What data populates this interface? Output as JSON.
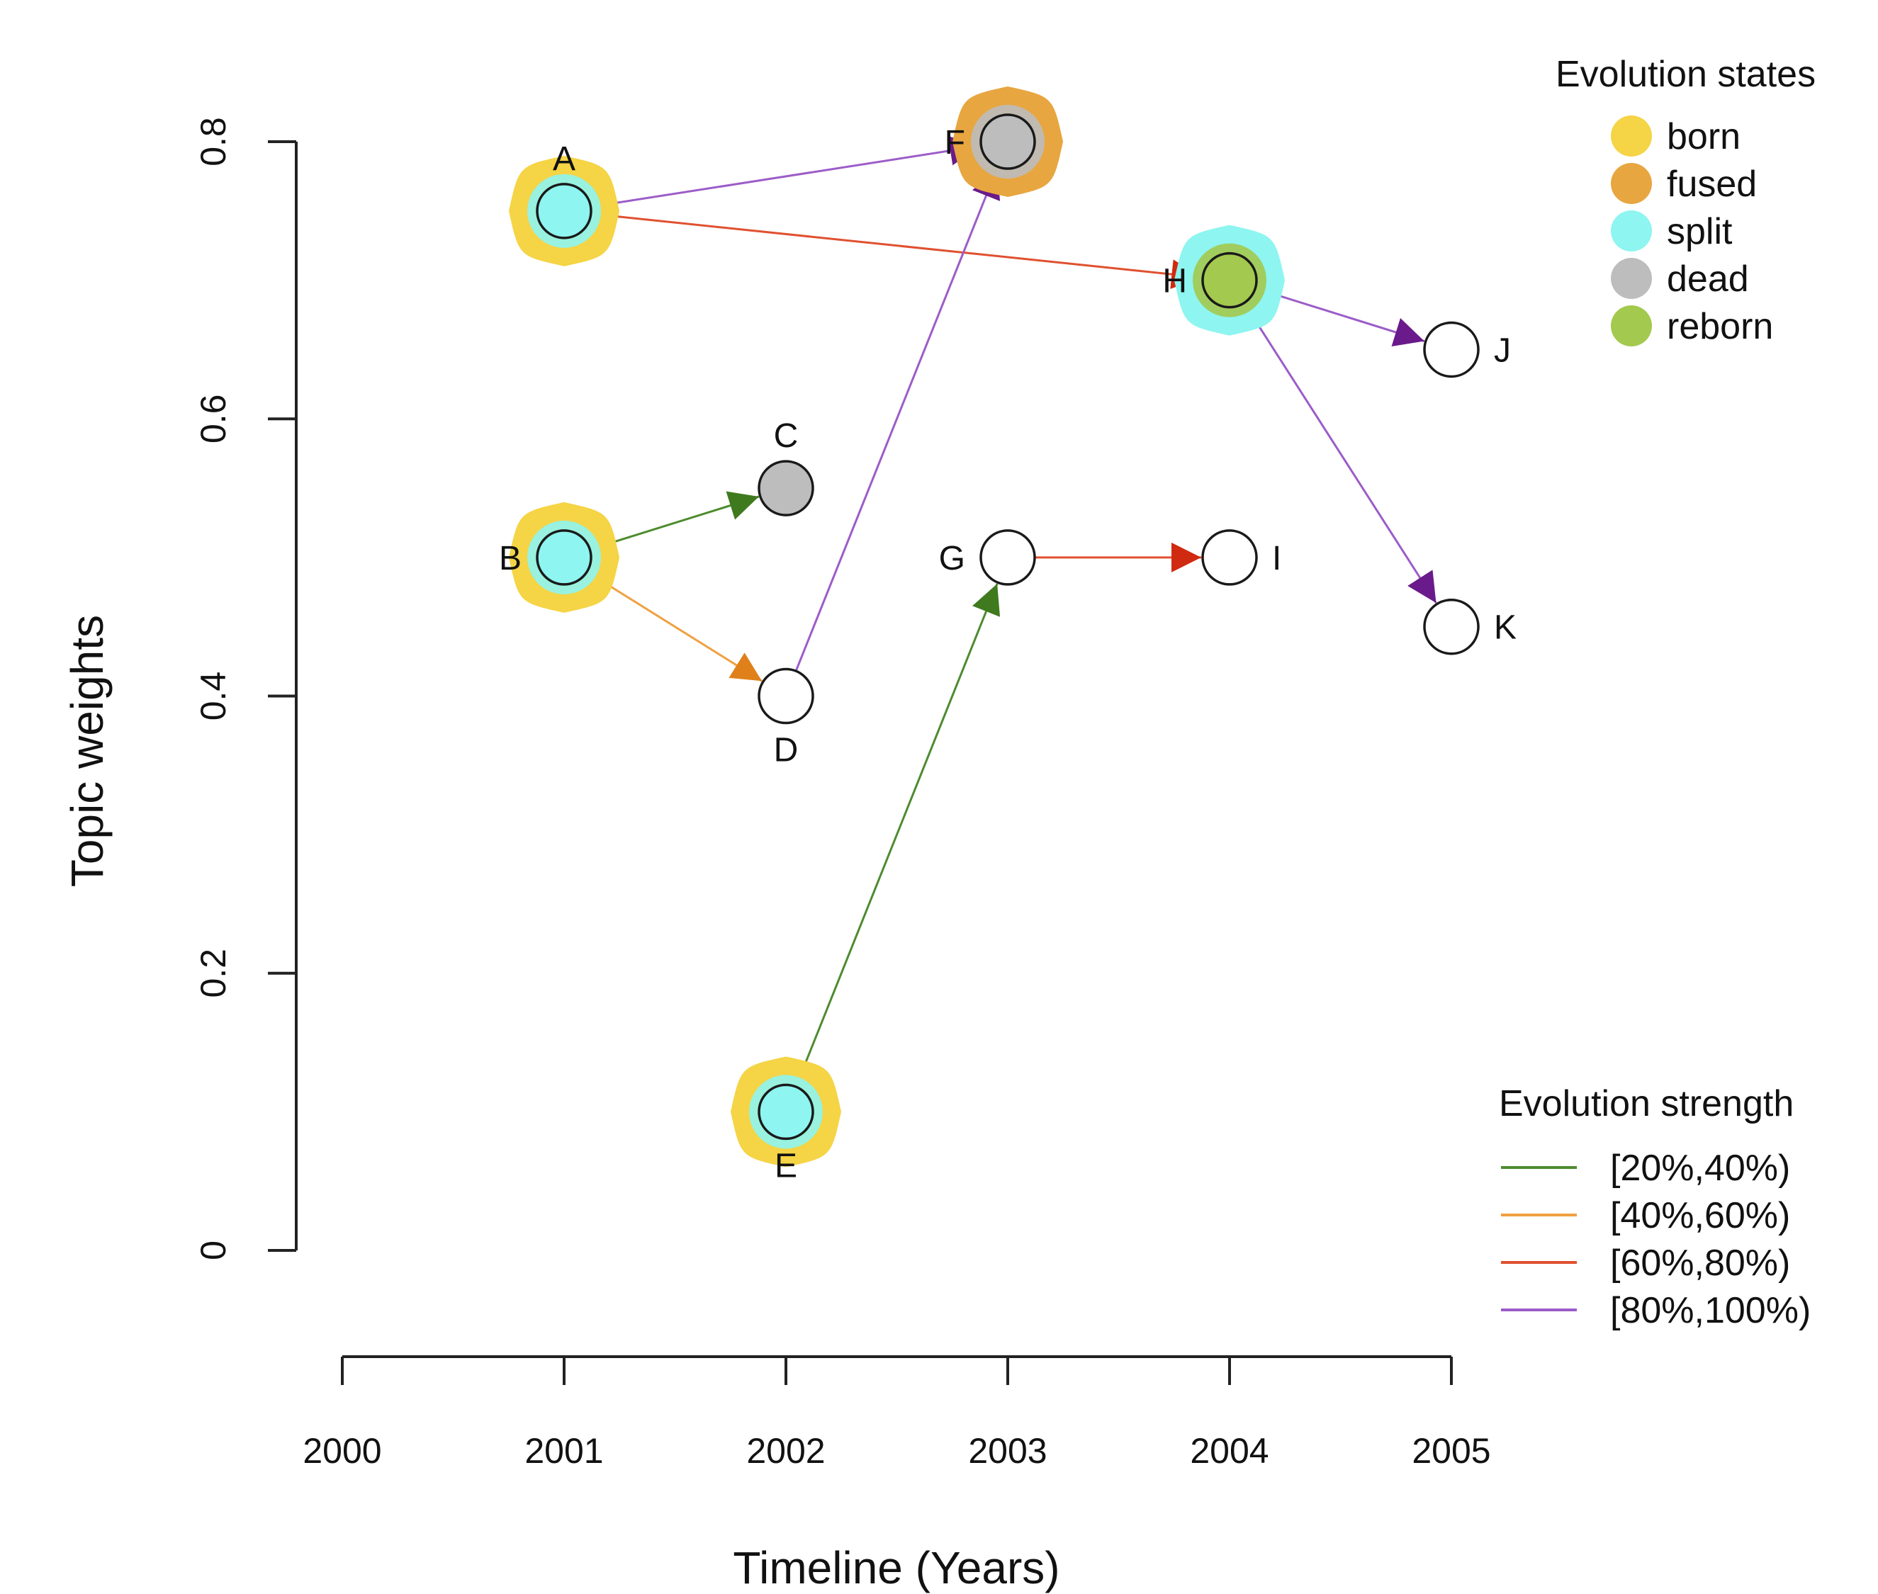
{
  "chart_data": {
    "type": "scatter",
    "xlabel": "Timeline (Years)",
    "ylabel": "Topic weights",
    "x_ticks": [
      "2000",
      "2001",
      "2002",
      "2003",
      "2004",
      "2005"
    ],
    "y_ticks": [
      "0",
      "0.2",
      "0.4",
      "0.6",
      "0.8"
    ],
    "xlim": [
      2000,
      2005
    ],
    "ylim": [
      0,
      0.8
    ],
    "grid": false,
    "nodes": [
      {
        "id": "A",
        "year": 2001,
        "weight": 0.75,
        "fill": "split",
        "halo": "born",
        "label_pos": "top"
      },
      {
        "id": "B",
        "year": 2001,
        "weight": 0.5,
        "fill": "split",
        "halo": "born",
        "label_pos": "left"
      },
      {
        "id": "C",
        "year": 2002,
        "weight": 0.55,
        "fill": "dead",
        "halo": null,
        "label_pos": "top"
      },
      {
        "id": "D",
        "year": 2002,
        "weight": 0.4,
        "fill": null,
        "halo": null,
        "label_pos": "bottom"
      },
      {
        "id": "E",
        "year": 2002,
        "weight": 0.1,
        "fill": "split",
        "halo": "born",
        "label_pos": "bottom"
      },
      {
        "id": "F",
        "year": 2003,
        "weight": 0.8,
        "fill": "dead",
        "halo": "fused",
        "label_pos": "left"
      },
      {
        "id": "G",
        "year": 2003,
        "weight": 0.5,
        "fill": null,
        "halo": null,
        "label_pos": "left"
      },
      {
        "id": "H",
        "year": 2004,
        "weight": 0.7,
        "fill": "reborn",
        "halo": "split",
        "label_pos": "left"
      },
      {
        "id": "I",
        "year": 2004,
        "weight": 0.5,
        "fill": null,
        "halo": null,
        "label_pos": "right"
      },
      {
        "id": "J",
        "year": 2005,
        "weight": 0.65,
        "fill": null,
        "halo": null,
        "label_pos": "right"
      },
      {
        "id": "K",
        "year": 2005,
        "weight": 0.45,
        "fill": null,
        "halo": null,
        "label_pos": "right"
      }
    ],
    "edges": [
      {
        "from": "A",
        "to": "F",
        "strength": "[80%,100%)"
      },
      {
        "from": "A",
        "to": "H",
        "strength": "[60%,80%)"
      },
      {
        "from": "B",
        "to": "C",
        "strength": "[20%,40%)"
      },
      {
        "from": "B",
        "to": "D",
        "strength": "[40%,60%)"
      },
      {
        "from": "D",
        "to": "F",
        "strength": "[80%,100%)"
      },
      {
        "from": "E",
        "to": "G",
        "strength": "[20%,40%)"
      },
      {
        "from": "G",
        "to": "I",
        "strength": "[60%,80%)"
      },
      {
        "from": "H",
        "to": "J",
        "strength": "[80%,100%)"
      },
      {
        "from": "H",
        "to": "K",
        "strength": "[80%,100%)"
      }
    ],
    "legend_states": {
      "title": "Evolution states",
      "placement": "top-right",
      "items": [
        {
          "key": "born",
          "label": "born",
          "color": "#F5D445"
        },
        {
          "key": "fused",
          "label": "fused",
          "color": "#E8A640"
        },
        {
          "key": "split",
          "label": "split",
          "color": "#8EF5F0"
        },
        {
          "key": "dead",
          "label": "dead",
          "color": "#BDBDBD"
        },
        {
          "key": "reborn",
          "label": "reborn",
          "color": "#A3C94E"
        }
      ]
    },
    "legend_strength": {
      "title": "Evolution strength",
      "placement": "bottom-right",
      "items": [
        {
          "label": "[20%,40%)",
          "color": "#4E8B2E",
          "arrow_color": "#3F7A1F"
        },
        {
          "label": "[40%,60%)",
          "color": "#F0A040",
          "arrow_color": "#E0801A"
        },
        {
          "label": "[60%,80%)",
          "color": "#E05030",
          "arrow_color": "#D02A10"
        },
        {
          "label": "[80%,100%)",
          "color": "#9C5CC8",
          "arrow_color": "#6A1A8A"
        }
      ]
    }
  }
}
